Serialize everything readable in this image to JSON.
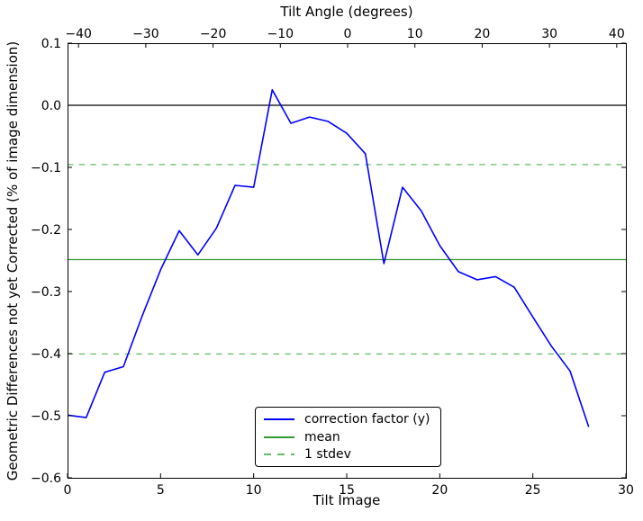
{
  "figure": {
    "title_top": "Tilt Angle (degrees)",
    "xlabel_bottom": "Tilt Image",
    "ylabel_left": "Geometric Differences not yet Corrected (% of image dimension)"
  },
  "legend": {
    "entries": [
      {
        "label": "correction factor (y)",
        "color": "#0000ff",
        "style": "solid"
      },
      {
        "label": "mean",
        "color": "#339933",
        "style": "solid"
      },
      {
        "label": "1 stdev",
        "color": "#66bb66",
        "style": "dashed"
      }
    ]
  },
  "chart_data": {
    "type": "line",
    "title": "Tilt Angle (degrees)",
    "xlabel": "Tilt Image",
    "ylabel": "Geometric Differences not yet Corrected (% of image dimension)",
    "xlim": [
      0,
      30
    ],
    "ylim": [
      -0.6,
      0.1
    ],
    "top_axis_label": "Tilt Angle (degrees)",
    "top_xlim": [
      -41.63,
      41.36
    ],
    "x_ticks": [
      0,
      5,
      10,
      15,
      20,
      25,
      30
    ],
    "x_tick_labels": [
      "0",
      "5",
      "10",
      "15",
      "20",
      "25",
      "30"
    ],
    "y_ticks": [
      0.1,
      0.0,
      -0.1,
      -0.2,
      -0.3,
      -0.4,
      -0.5,
      -0.6
    ],
    "y_tick_labels": [
      "0.1",
      "0.0",
      "−0.1",
      "−0.2",
      "−0.3",
      "−0.4",
      "−0.5",
      "−0.6"
    ],
    "top_ticks": [
      -40,
      -30,
      -20,
      -10,
      0,
      10,
      20,
      30,
      40
    ],
    "top_tick_labels": [
      "−40",
      "−30",
      "−20",
      "−10",
      "0",
      "10",
      "20",
      "30",
      "40"
    ],
    "grid": false,
    "legend_position": "lower center",
    "x": [
      0,
      1,
      2,
      3,
      4,
      5,
      6,
      7,
      8,
      9,
      10,
      11,
      12,
      13,
      14,
      15,
      16,
      17,
      18,
      19,
      20,
      21,
      22,
      23,
      24,
      25,
      26,
      27,
      28
    ],
    "series": [
      {
        "name": "correction factor (y)",
        "color": "#0000ff",
        "style": "solid",
        "values": [
          -0.499,
          -0.503,
          -0.43,
          -0.421,
          -0.34,
          -0.265,
          -0.202,
          -0.241,
          -0.198,
          -0.129,
          -0.132,
          0.025,
          -0.029,
          -0.019,
          -0.026,
          -0.045,
          -0.078,
          -0.255,
          -0.132,
          -0.17,
          -0.226,
          -0.268,
          -0.281,
          -0.276,
          -0.293,
          -0.341,
          -0.388,
          -0.428,
          -0.518
        ]
      },
      {
        "name": "mean",
        "color": "#339933",
        "style": "solid",
        "hline_value": -0.2485
      },
      {
        "name": "1 stdev",
        "color": "#66bb66",
        "style": "dashed",
        "hline_values": [
          -0.0955,
          -0.4005
        ]
      }
    ],
    "zero_line": {
      "value": 0.0,
      "color": "#000000"
    },
    "axis_color": "#000000"
  }
}
